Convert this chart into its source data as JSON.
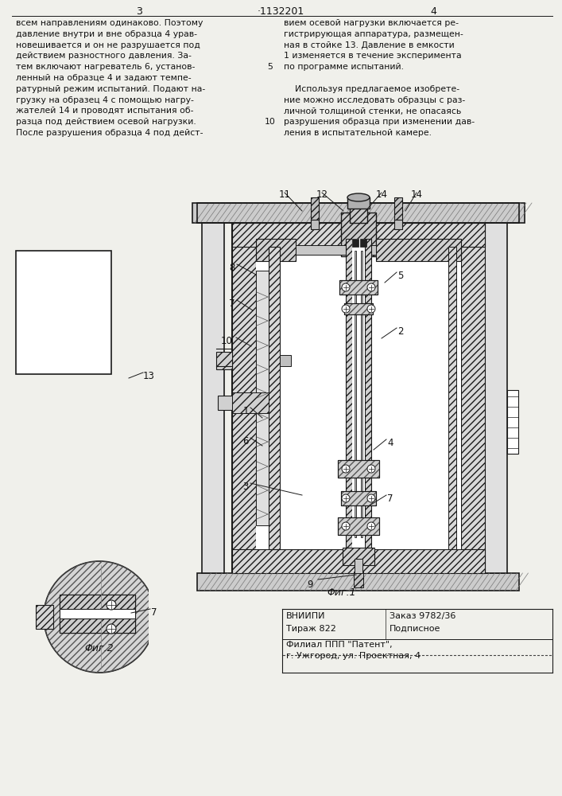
{
  "page_number_left": "3",
  "page_number_center": "·1132201",
  "page_number_right": "4",
  "text_left_col": [
    "всем направлениям одинаково. Поэтому",
    "давление внутри и вне образца 4 урав-",
    "новешивается и он не разрушается под",
    "действием разностного давления. За-",
    "тем включают нагреватель 6, установ-",
    "ленный на образце 4 и задают темпе-",
    "ратурный режим испытаний. Подают на-",
    "грузку на образец 4 с помощью нагру-",
    "жателей 14 и проводят испытания об-",
    "разца под действием осевой нагрузки.",
    "После разрушения образца 4 под дейст-"
  ],
  "line_number_5": "5",
  "line_number_10": "10",
  "text_right_col": [
    "вием осевой нагрузки включается ре-",
    "гистрирующая аппаратура, размещен-",
    "ная в стойке 13. Давление в емкости",
    "1 изменяется в течение эксперимента",
    "по программе испытаний.",
    "",
    "    Используя предлагаемое изобрете-",
    "ние можно исследовать образцы с раз-",
    "личной толщиной стенки, не опасаясь",
    "разрушения образца при изменении дав-",
    "ления в испытательной камере."
  ],
  "fig1_caption": "Φиг.1",
  "fig2_caption": "Φиг.2",
  "vniip_label": "ВНИИПИ",
  "zakaz_label": "Заказ 9782/36",
  "tirazh_label": "Тираж 822",
  "podpisnoe_label": "Подписное",
  "filial_line1": "Филиал ППП \"Патент\",",
  "filial_line2": "г. Ужгород, ул. Проектная, 4",
  "bg_color": "#f0f0eb",
  "line_color": "#1a1a1a",
  "text_color": "#111111"
}
